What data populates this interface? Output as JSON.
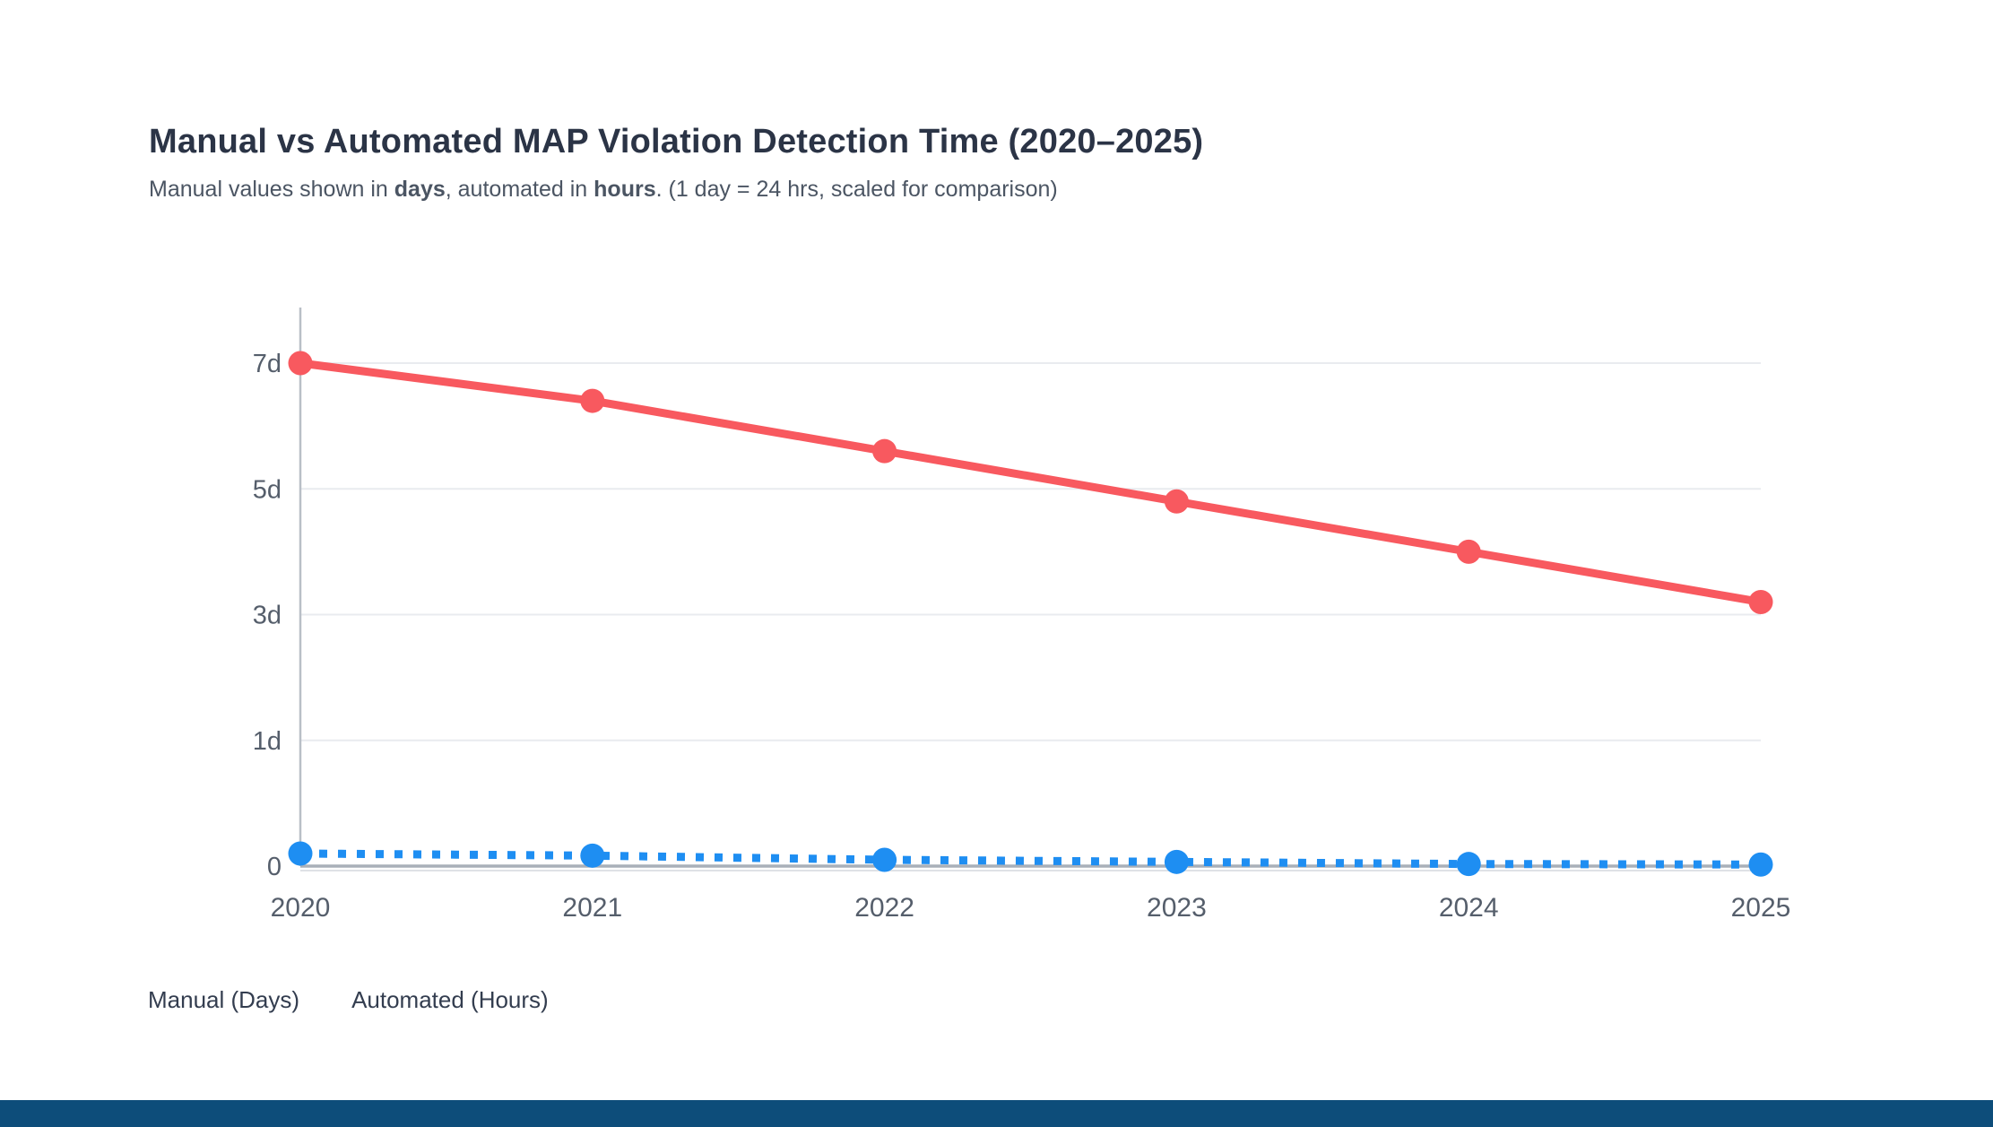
{
  "header": {
    "subtitle_parts": [
      {
        "text": "Manual values shown in ",
        "bold": false
      },
      {
        "text": "days",
        "bold": true
      },
      {
        "text": ", automated in ",
        "bold": false
      },
      {
        "text": "hours",
        "bold": true
      },
      {
        "text": ". (1 day = 24 hrs, scaled for comparison)",
        "bold": false
      }
    ]
  },
  "chart_data": {
    "type": "line",
    "title": "Manual vs Automated MAP Violation Detection Time (2020–2025)",
    "subtitle": "Manual values shown in days, automated in hours. (1 day = 24 hrs, scaled for comparison)",
    "x": [
      2020,
      2021,
      2022,
      2023,
      2024,
      2025
    ],
    "x_tick_labels": [
      "2020",
      "2021",
      "2022",
      "2023",
      "2024",
      "2025"
    ],
    "series": [
      {
        "name": "Manual (Days)",
        "unit": "days",
        "style": "solid",
        "color": "#f8595f",
        "values": [
          7,
          6.4,
          5.6,
          4.8,
          4.0,
          3.2
        ]
      },
      {
        "name": "Automated (Hours)",
        "unit": "hours",
        "style": "dotted",
        "color": "#1e8ef2",
        "values": [
          2.4,
          2.0,
          1.2,
          0.8,
          0.4,
          0.3
        ],
        "note": "plotted as hours/24 day-equivalents, estimated from pixel positions"
      }
    ],
    "y_ticks": [
      {
        "label": "7d",
        "value": 7
      },
      {
        "label": "5d",
        "value": 5
      },
      {
        "label": "3d",
        "value": 3
      },
      {
        "label": "1d",
        "value": 1
      },
      {
        "label": "0",
        "value": 0
      }
    ],
    "ylim": [
      0,
      7
    ],
    "grid": true,
    "gridlines_horizontal_only": true,
    "y_ticks_evenly_spaced_nonlinear": true,
    "legend_position": "bottom-left",
    "legend_labels": [
      "Manual (Days)",
      "Automated (Hours)"
    ]
  },
  "colors": {
    "title_text": "#2b3446",
    "subtitle_text": "#4b5563",
    "tick_text": "#555e6b",
    "legend_text": "#333d4f",
    "gridline": "#e9ebef",
    "axis_line": "#a9b0b9",
    "manual_line": "#f8595f",
    "automated_line": "#1e8ef2",
    "footer_bar": "#0d4d7a",
    "background": "#ffffff"
  }
}
